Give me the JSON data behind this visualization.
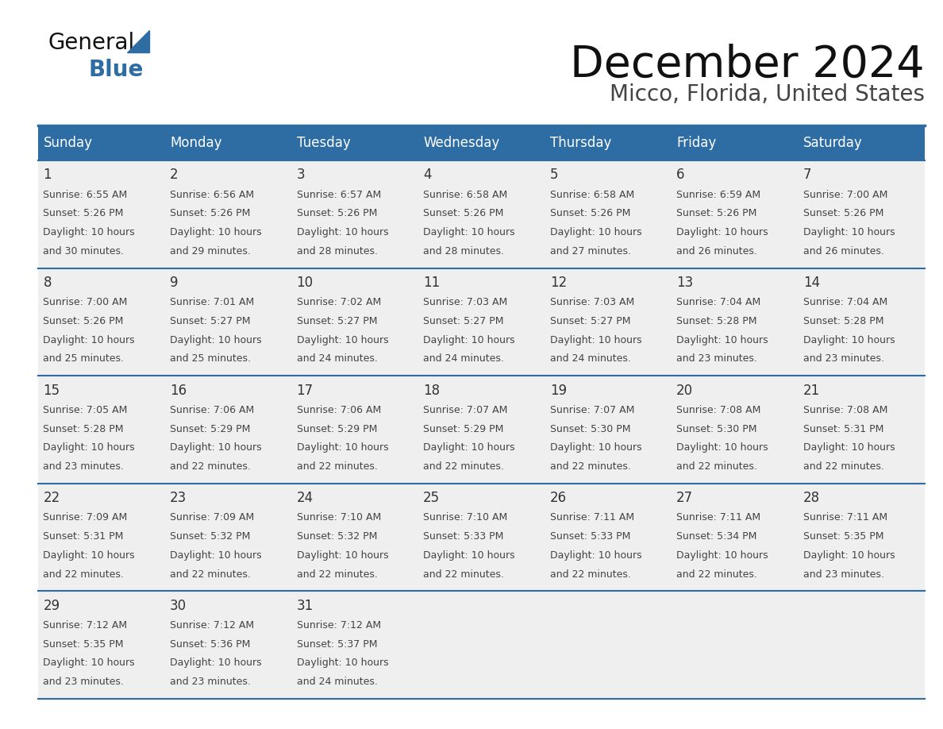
{
  "title": "December 2024",
  "subtitle": "Micco, Florida, United States",
  "header_bg": "#2E6DA4",
  "header_text_color": "#FFFFFF",
  "day_names": [
    "Sunday",
    "Monday",
    "Tuesday",
    "Wednesday",
    "Thursday",
    "Friday",
    "Saturday"
  ],
  "cell_bg": "#EFEFEF",
  "cell_border_color": "#2E6DA4",
  "day_num_color": "#333333",
  "cell_text_color": "#444444",
  "title_color": "#111111",
  "subtitle_color": "#444444",
  "generalblue_black": "#111111",
  "generalblue_color": "#2E6DA4",
  "calendar": [
    [
      {
        "day": 1,
        "sunrise": "6:55 AM",
        "sunset": "5:26 PM",
        "daylight_line1": "10 hours",
        "daylight_line2": "and 30 minutes."
      },
      {
        "day": 2,
        "sunrise": "6:56 AM",
        "sunset": "5:26 PM",
        "daylight_line1": "10 hours",
        "daylight_line2": "and 29 minutes."
      },
      {
        "day": 3,
        "sunrise": "6:57 AM",
        "sunset": "5:26 PM",
        "daylight_line1": "10 hours",
        "daylight_line2": "and 28 minutes."
      },
      {
        "day": 4,
        "sunrise": "6:58 AM",
        "sunset": "5:26 PM",
        "daylight_line1": "10 hours",
        "daylight_line2": "and 28 minutes."
      },
      {
        "day": 5,
        "sunrise": "6:58 AM",
        "sunset": "5:26 PM",
        "daylight_line1": "10 hours",
        "daylight_line2": "and 27 minutes."
      },
      {
        "day": 6,
        "sunrise": "6:59 AM",
        "sunset": "5:26 PM",
        "daylight_line1": "10 hours",
        "daylight_line2": "and 26 minutes."
      },
      {
        "day": 7,
        "sunrise": "7:00 AM",
        "sunset": "5:26 PM",
        "daylight_line1": "10 hours",
        "daylight_line2": "and 26 minutes."
      }
    ],
    [
      {
        "day": 8,
        "sunrise": "7:00 AM",
        "sunset": "5:26 PM",
        "daylight_line1": "10 hours",
        "daylight_line2": "and 25 minutes."
      },
      {
        "day": 9,
        "sunrise": "7:01 AM",
        "sunset": "5:27 PM",
        "daylight_line1": "10 hours",
        "daylight_line2": "and 25 minutes."
      },
      {
        "day": 10,
        "sunrise": "7:02 AM",
        "sunset": "5:27 PM",
        "daylight_line1": "10 hours",
        "daylight_line2": "and 24 minutes."
      },
      {
        "day": 11,
        "sunrise": "7:03 AM",
        "sunset": "5:27 PM",
        "daylight_line1": "10 hours",
        "daylight_line2": "and 24 minutes."
      },
      {
        "day": 12,
        "sunrise": "7:03 AM",
        "sunset": "5:27 PM",
        "daylight_line1": "10 hours",
        "daylight_line2": "and 24 minutes."
      },
      {
        "day": 13,
        "sunrise": "7:04 AM",
        "sunset": "5:28 PM",
        "daylight_line1": "10 hours",
        "daylight_line2": "and 23 minutes."
      },
      {
        "day": 14,
        "sunrise": "7:04 AM",
        "sunset": "5:28 PM",
        "daylight_line1": "10 hours",
        "daylight_line2": "and 23 minutes."
      }
    ],
    [
      {
        "day": 15,
        "sunrise": "7:05 AM",
        "sunset": "5:28 PM",
        "daylight_line1": "10 hours",
        "daylight_line2": "and 23 minutes."
      },
      {
        "day": 16,
        "sunrise": "7:06 AM",
        "sunset": "5:29 PM",
        "daylight_line1": "10 hours",
        "daylight_line2": "and 22 minutes."
      },
      {
        "day": 17,
        "sunrise": "7:06 AM",
        "sunset": "5:29 PM",
        "daylight_line1": "10 hours",
        "daylight_line2": "and 22 minutes."
      },
      {
        "day": 18,
        "sunrise": "7:07 AM",
        "sunset": "5:29 PM",
        "daylight_line1": "10 hours",
        "daylight_line2": "and 22 minutes."
      },
      {
        "day": 19,
        "sunrise": "7:07 AM",
        "sunset": "5:30 PM",
        "daylight_line1": "10 hours",
        "daylight_line2": "and 22 minutes."
      },
      {
        "day": 20,
        "sunrise": "7:08 AM",
        "sunset": "5:30 PM",
        "daylight_line1": "10 hours",
        "daylight_line2": "and 22 minutes."
      },
      {
        "day": 21,
        "sunrise": "7:08 AM",
        "sunset": "5:31 PM",
        "daylight_line1": "10 hours",
        "daylight_line2": "and 22 minutes."
      }
    ],
    [
      {
        "day": 22,
        "sunrise": "7:09 AM",
        "sunset": "5:31 PM",
        "daylight_line1": "10 hours",
        "daylight_line2": "and 22 minutes."
      },
      {
        "day": 23,
        "sunrise": "7:09 AM",
        "sunset": "5:32 PM",
        "daylight_line1": "10 hours",
        "daylight_line2": "and 22 minutes."
      },
      {
        "day": 24,
        "sunrise": "7:10 AM",
        "sunset": "5:32 PM",
        "daylight_line1": "10 hours",
        "daylight_line2": "and 22 minutes."
      },
      {
        "day": 25,
        "sunrise": "7:10 AM",
        "sunset": "5:33 PM",
        "daylight_line1": "10 hours",
        "daylight_line2": "and 22 minutes."
      },
      {
        "day": 26,
        "sunrise": "7:11 AM",
        "sunset": "5:33 PM",
        "daylight_line1": "10 hours",
        "daylight_line2": "and 22 minutes."
      },
      {
        "day": 27,
        "sunrise": "7:11 AM",
        "sunset": "5:34 PM",
        "daylight_line1": "10 hours",
        "daylight_line2": "and 22 minutes."
      },
      {
        "day": 28,
        "sunrise": "7:11 AM",
        "sunset": "5:35 PM",
        "daylight_line1": "10 hours",
        "daylight_line2": "and 23 minutes."
      }
    ],
    [
      {
        "day": 29,
        "sunrise": "7:12 AM",
        "sunset": "5:35 PM",
        "daylight_line1": "10 hours",
        "daylight_line2": "and 23 minutes."
      },
      {
        "day": 30,
        "sunrise": "7:12 AM",
        "sunset": "5:36 PM",
        "daylight_line1": "10 hours",
        "daylight_line2": "and 23 minutes."
      },
      {
        "day": 31,
        "sunrise": "7:12 AM",
        "sunset": "5:37 PM",
        "daylight_line1": "10 hours",
        "daylight_line2": "and 24 minutes."
      },
      null,
      null,
      null,
      null
    ]
  ]
}
